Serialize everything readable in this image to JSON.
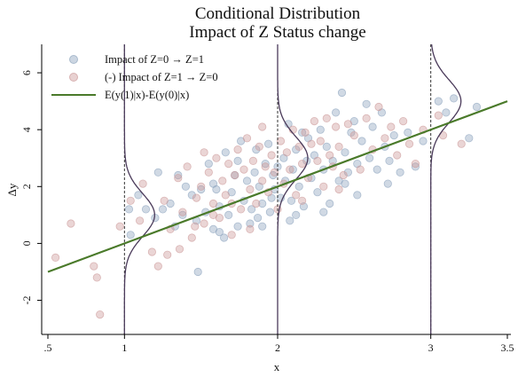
{
  "chart_data": {
    "type": "scatter",
    "title": "Conditional Distribution",
    "subtitle": "Impact of Z Status change",
    "xlabel": "x",
    "ylabel": "Δy",
    "xlim": [
      0.5,
      3.5
    ],
    "ylim": [
      -3.2,
      7.0
    ],
    "x_ticks": [
      0.5,
      1,
      2,
      3,
      3.5
    ],
    "x_tick_labels": [
      ".5",
      "1",
      "2",
      "3",
      "3.5"
    ],
    "y_ticks": [
      -2,
      0,
      2,
      4,
      6
    ],
    "y_tick_labels": [
      "-2",
      "0",
      "2",
      "4",
      "6"
    ],
    "grid": false,
    "legend_position": "top-left",
    "colors": {
      "series_z0": "#8ea5be",
      "series_z1": "#cc9a9a",
      "regression_line": "#4a7a2a",
      "density_curve": "#4a3a5a",
      "vline": "#333333"
    },
    "series": [
      {
        "name": "Impact of Z=0 → Z=1",
        "kind": "scatter",
        "points": [
          [
            1.03,
            1.2
          ],
          [
            1.04,
            0.3
          ],
          [
            1.09,
            1.7
          ],
          [
            1.14,
            1.2
          ],
          [
            1.2,
            0.9
          ],
          [
            1.22,
            2.5
          ],
          [
            1.25,
            1.2
          ],
          [
            1.3,
            1.4
          ],
          [
            1.33,
            0.6
          ],
          [
            1.38,
            1.0
          ],
          [
            1.4,
            2.0
          ],
          [
            1.44,
            1.7
          ],
          [
            1.47,
            0.8
          ],
          [
            1.5,
            1.9
          ],
          [
            1.53,
            1.1
          ],
          [
            1.55,
            2.8
          ],
          [
            1.58,
            0.5
          ],
          [
            1.6,
            1.9
          ],
          [
            1.62,
            1.3
          ],
          [
            1.65,
            0.2
          ],
          [
            1.66,
            3.2
          ],
          [
            1.68,
            1.0
          ],
          [
            1.7,
            1.8
          ],
          [
            1.72,
            2.4
          ],
          [
            1.74,
            0.6
          ],
          [
            1.76,
            3.6
          ],
          [
            1.78,
            1.5
          ],
          [
            1.8,
            2.2
          ],
          [
            1.82,
            0.7
          ],
          [
            1.83,
            1.2
          ],
          [
            1.85,
            2.5
          ],
          [
            1.87,
            0.9
          ],
          [
            1.88,
            2.0
          ],
          [
            1.9,
            1.4
          ],
          [
            1.92,
            2.8
          ],
          [
            1.94,
            3.5
          ],
          [
            1.95,
            1.1
          ],
          [
            1.97,
            2.4
          ],
          [
            1.98,
            1.9
          ],
          [
            2.0,
            2.7
          ],
          [
            2.02,
            1.6
          ],
          [
            2.04,
            3.0
          ],
          [
            2.05,
            2.2
          ],
          [
            2.07,
            4.2
          ],
          [
            2.09,
            1.5
          ],
          [
            2.1,
            2.6
          ],
          [
            2.12,
            3.3
          ],
          [
            2.14,
            2.0
          ],
          [
            2.16,
            3.9
          ],
          [
            2.17,
            1.3
          ],
          [
            2.19,
            2.9
          ],
          [
            2.2,
            3.7
          ],
          [
            2.22,
            2.3
          ],
          [
            2.24,
            3.1
          ],
          [
            2.26,
            1.8
          ],
          [
            2.28,
            4.0
          ],
          [
            2.3,
            2.6
          ],
          [
            2.32,
            3.4
          ],
          [
            2.34,
            1.4
          ],
          [
            2.36,
            2.9
          ],
          [
            2.38,
            4.6
          ],
          [
            2.4,
            2.2
          ],
          [
            2.42,
            5.3
          ],
          [
            2.44,
            3.2
          ],
          [
            2.46,
            2.5
          ],
          [
            2.48,
            3.9
          ],
          [
            2.5,
            4.3
          ],
          [
            2.52,
            2.8
          ],
          [
            2.55,
            3.6
          ],
          [
            2.58,
            4.9
          ],
          [
            2.6,
            3.0
          ],
          [
            2.62,
            4.1
          ],
          [
            2.65,
            2.6
          ],
          [
            2.68,
            4.6
          ],
          [
            2.7,
            3.4
          ],
          [
            2.73,
            2.9
          ],
          [
            2.76,
            3.8
          ],
          [
            2.8,
            2.5
          ],
          [
            2.85,
            3.9
          ],
          [
            2.9,
            2.7
          ],
          [
            2.95,
            3.6
          ],
          [
            3.05,
            5.0
          ],
          [
            3.1,
            4.6
          ],
          [
            3.15,
            5.1
          ],
          [
            3.25,
            3.7
          ],
          [
            3.3,
            4.8
          ],
          [
            1.58,
            2.1
          ],
          [
            1.74,
            2.9
          ],
          [
            1.86,
            3.3
          ],
          [
            2.08,
            0.8
          ],
          [
            1.62,
            0.4
          ],
          [
            1.9,
            0.6
          ],
          [
            2.3,
            1.1
          ],
          [
            1.48,
            -1.0
          ],
          [
            1.35,
            2.4
          ],
          [
            2.52,
            1.7
          ],
          [
            2.72,
            2.1
          ],
          [
            1.96,
            1.6
          ],
          [
            2.12,
            1.0
          ],
          [
            2.44,
            2.1
          ]
        ]
      },
      {
        "name": "(-) Impact of Z=1 → Z=0",
        "kind": "scatter",
        "points": [
          [
            0.55,
            -0.5
          ],
          [
            0.65,
            0.7
          ],
          [
            0.8,
            -0.8
          ],
          [
            0.82,
            -1.2
          ],
          [
            0.84,
            -2.5
          ],
          [
            0.97,
            0.6
          ],
          [
            1.04,
            1.5
          ],
          [
            1.1,
            0.8
          ],
          [
            1.12,
            2.1
          ],
          [
            1.18,
            -0.3
          ],
          [
            1.22,
            -0.8
          ],
          [
            1.26,
            1.5
          ],
          [
            1.3,
            0.5
          ],
          [
            1.35,
            2.3
          ],
          [
            1.38,
            1.1
          ],
          [
            1.41,
            2.7
          ],
          [
            1.44,
            0.2
          ],
          [
            1.47,
            1.6
          ],
          [
            1.5,
            2.0
          ],
          [
            1.52,
            0.7
          ],
          [
            1.55,
            2.5
          ],
          [
            1.58,
            1.4
          ],
          [
            1.6,
            3.0
          ],
          [
            1.62,
            0.9
          ],
          [
            1.64,
            2.2
          ],
          [
            1.66,
            1.7
          ],
          [
            1.68,
            2.8
          ],
          [
            1.7,
            0.3
          ],
          [
            1.72,
            2.4
          ],
          [
            1.74,
            3.3
          ],
          [
            1.76,
            1.2
          ],
          [
            1.78,
            2.6
          ],
          [
            1.8,
            3.7
          ],
          [
            1.82,
            1.9
          ],
          [
            1.84,
            2.9
          ],
          [
            1.86,
            1.4
          ],
          [
            1.88,
            3.4
          ],
          [
            1.9,
            2.2
          ],
          [
            1.92,
            2.7
          ],
          [
            1.94,
            1.8
          ],
          [
            1.96,
            3.1
          ],
          [
            1.98,
            2.5
          ],
          [
            2.0,
            1.2
          ],
          [
            2.02,
            3.6
          ],
          [
            2.04,
            2.1
          ],
          [
            2.06,
            3.2
          ],
          [
            2.08,
            2.6
          ],
          [
            2.1,
            4.0
          ],
          [
            2.12,
            1.7
          ],
          [
            2.14,
            3.4
          ],
          [
            2.16,
            2.8
          ],
          [
            2.18,
            3.9
          ],
          [
            2.2,
            2.3
          ],
          [
            2.22,
            3.5
          ],
          [
            2.24,
            4.3
          ],
          [
            2.26,
            2.9
          ],
          [
            2.28,
            3.6
          ],
          [
            2.3,
            2.0
          ],
          [
            2.32,
            4.4
          ],
          [
            2.34,
            3.1
          ],
          [
            2.36,
            2.7
          ],
          [
            2.38,
            4.1
          ],
          [
            2.4,
            3.4
          ],
          [
            2.43,
            2.4
          ],
          [
            2.46,
            4.2
          ],
          [
            2.5,
            3.8
          ],
          [
            2.54,
            2.6
          ],
          [
            2.58,
            4.4
          ],
          [
            2.62,
            3.3
          ],
          [
            2.66,
            4.8
          ],
          [
            2.7,
            3.7
          ],
          [
            2.74,
            4.1
          ],
          [
            2.78,
            3.1
          ],
          [
            2.82,
            4.3
          ],
          [
            2.86,
            3.5
          ],
          [
            2.9,
            2.8
          ],
          [
            2.95,
            4.0
          ],
          [
            3.05,
            4.5
          ],
          [
            3.08,
            3.8
          ],
          [
            3.2,
            3.5
          ],
          [
            1.28,
            -0.4
          ],
          [
            1.36,
            -0.2
          ],
          [
            1.46,
            0.6
          ],
          [
            1.58,
            1.0
          ],
          [
            1.7,
            1.4
          ],
          [
            1.82,
            0.5
          ],
          [
            2.16,
            1.5
          ],
          [
            2.4,
            1.9
          ],
          [
            1.52,
            3.2
          ],
          [
            1.9,
            4.1
          ]
        ]
      },
      {
        "name": "E(y(1)|x)-E(y(0)|x)",
        "kind": "line",
        "points": [
          [
            0.5,
            -1.0
          ],
          [
            3.5,
            5.0
          ]
        ]
      }
    ],
    "density_curves": [
      {
        "x": 1,
        "mean": 1.0,
        "sd": 0.75
      },
      {
        "x": 2,
        "mean": 3.0,
        "sd": 0.75
      },
      {
        "x": 3,
        "mean": 5.0,
        "sd": 0.75
      }
    ]
  }
}
